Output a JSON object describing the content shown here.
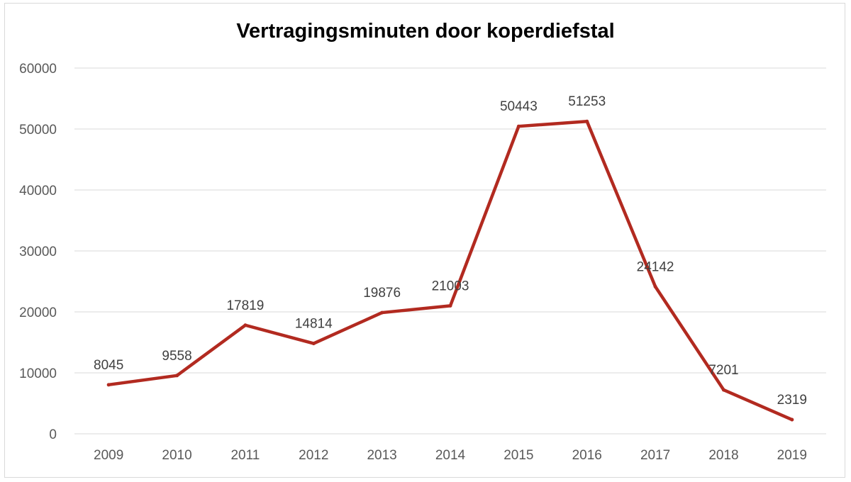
{
  "chart_data": {
    "type": "line",
    "title": "Vertragingsminuten door koperdiefstal",
    "xlabel": "",
    "ylabel": "",
    "categories": [
      "2009",
      "2010",
      "2011",
      "2012",
      "2013",
      "2014",
      "2015",
      "2016",
      "2017",
      "2018",
      "2019"
    ],
    "series": [
      {
        "values": [
          8045,
          9558,
          17819,
          14814,
          19876,
          21003,
          50443,
          51253,
          24142,
          7201,
          2319
        ]
      }
    ],
    "y_ticks": [
      "0",
      "10000",
      "20000",
      "30000",
      "40000",
      "50000",
      "60000"
    ],
    "ylim": [
      0,
      60000
    ],
    "grid": true,
    "legend": "none",
    "data_labels": true,
    "line_color": "#b22a20"
  }
}
